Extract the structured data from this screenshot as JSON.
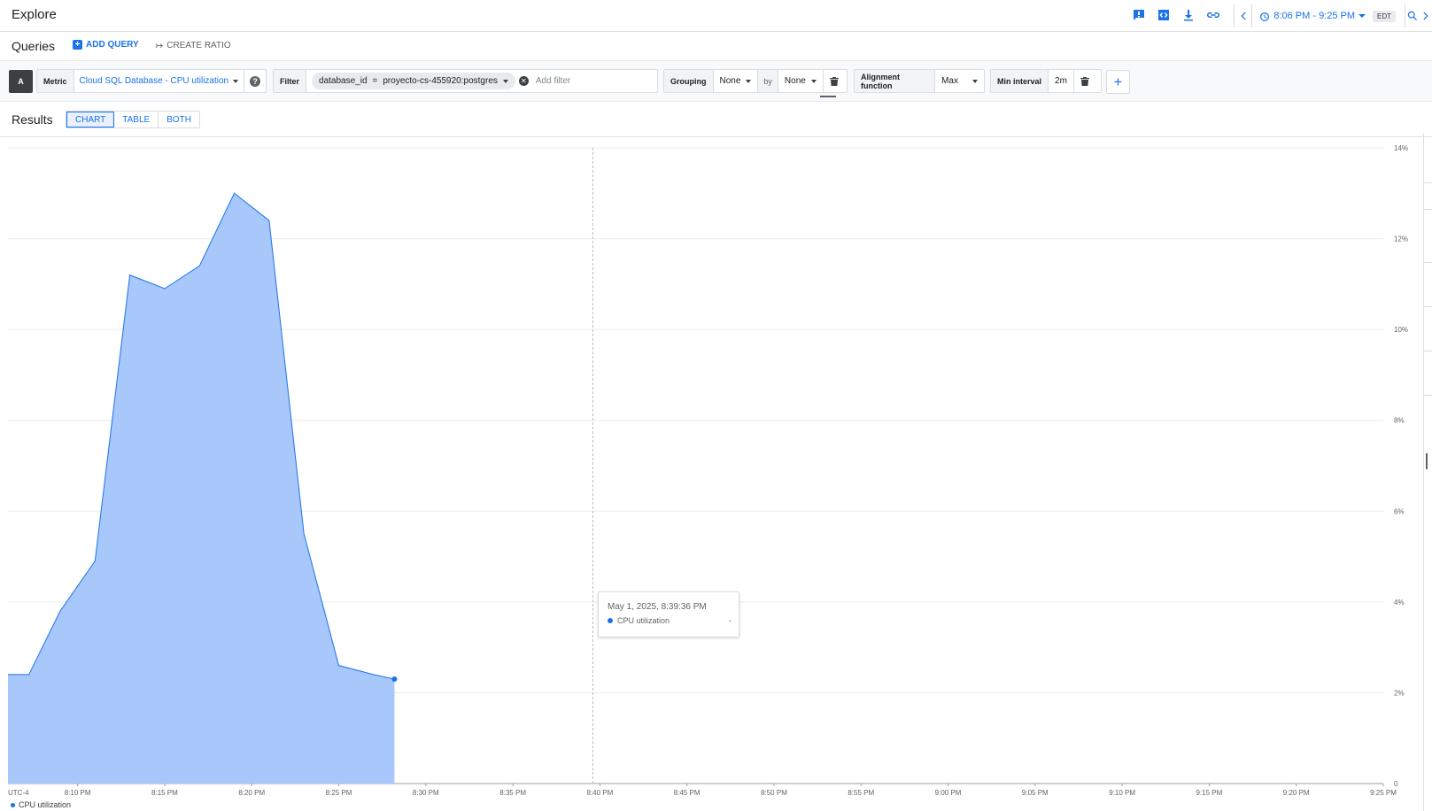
{
  "header": {
    "title": "Explore",
    "icons": [
      "feedback-icon",
      "code-icon",
      "download-icon",
      "link-icon"
    ],
    "time_range": "8:06 PM - 9:25 PM",
    "timezone": "EDT"
  },
  "queries": {
    "label": "Queries",
    "add_query": "ADD QUERY",
    "create_ratio": "CREATE RATIO"
  },
  "query": {
    "badge": "A",
    "metric_label": "Metric",
    "metric_value": "Cloud SQL Database - CPU utilization",
    "filter_label": "Filter",
    "filter_key": "database_id",
    "filter_op": "=",
    "filter_value": "proyecto-cs-455920:postgres",
    "add_filter_placeholder": "Add filter",
    "grouping_label": "Grouping",
    "grouping_value": "None",
    "by_label": "by",
    "by_value": "None",
    "alignment_label": "Alignment function",
    "alignment_value": "Max",
    "min_interval_label": "Min interval",
    "min_interval_value": "2m"
  },
  "results": {
    "label": "Results",
    "views": [
      "CHART",
      "TABLE",
      "BOTH"
    ],
    "active_view": "CHART"
  },
  "chart_data": {
    "type": "area",
    "y_unit": "%",
    "ylim": [
      0,
      14
    ],
    "y_ticks": [
      "0",
      "2%",
      "4%",
      "6%",
      "8%",
      "10%",
      "12%",
      "14%"
    ],
    "x_tz_label": "UTC-4",
    "x_ticks": [
      "8:10 PM",
      "8:15 PM",
      "8:20 PM",
      "8:25 PM",
      "8:30 PM",
      "8:35 PM",
      "8:40 PM",
      "8:45 PM",
      "8:50 PM",
      "8:55 PM",
      "9:00 PM",
      "9:05 PM",
      "9:10 PM",
      "9:15 PM",
      "9:20 PM",
      "9:25 PM"
    ],
    "x_range_minutes": [
      6.0,
      85.0
    ],
    "x_tick_minutes": [
      10,
      15,
      20,
      25,
      30,
      35,
      40,
      45,
      50,
      55,
      60,
      65,
      70,
      75,
      80,
      85
    ],
    "series": [
      {
        "name": "CPU utilization",
        "color": "#1a73e8",
        "fill": "#a8c7fa",
        "x_minutes": [
          6.0,
          7.2,
          9.0,
          11.0,
          13.0,
          15.0,
          17.0,
          19.0,
          21.0,
          23.0,
          25.0,
          27.0,
          28.2
        ],
        "values": [
          2.4,
          2.4,
          3.8,
          4.9,
          11.2,
          10.9,
          11.4,
          13.0,
          12.4,
          5.5,
          2.6,
          2.4,
          2.3
        ]
      }
    ],
    "hover_minutes": 39.6,
    "legend": "CPU utilization",
    "grid": true
  },
  "tooltip": {
    "time": "May 1, 2025, 8:39:36 PM",
    "series": "CPU utilization",
    "value": "-"
  }
}
